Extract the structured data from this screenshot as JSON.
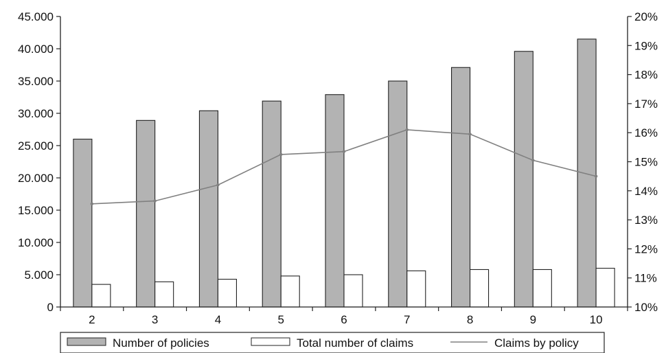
{
  "chart_data": {
    "type": "bar",
    "categories": [
      "2",
      "3",
      "4",
      "5",
      "6",
      "7",
      "8",
      "9",
      "10"
    ],
    "series": [
      {
        "name": "Number of policies",
        "kind": "bar",
        "axis": "left",
        "color": "#b3b3b3",
        "values": [
          26000,
          28900,
          30400,
          31900,
          32900,
          35000,
          37100,
          39600,
          41500
        ]
      },
      {
        "name": "Total number of claims",
        "kind": "bar",
        "axis": "left",
        "color": "#ffffff",
        "values": [
          3500,
          3900,
          4300,
          4800,
          5000,
          5600,
          5800,
          5800,
          6000
        ]
      },
      {
        "name": "Claims by policy",
        "kind": "line",
        "axis": "right",
        "color": "#808080",
        "values": [
          13.55,
          13.65,
          14.2,
          15.25,
          15.35,
          16.1,
          15.95,
          15.05,
          14.5
        ]
      }
    ],
    "y_left": {
      "range": [
        0,
        45000
      ],
      "ticks": [
        0,
        5000,
        10000,
        15000,
        20000,
        25000,
        30000,
        35000,
        40000,
        45000
      ],
      "tick_labels": [
        "0",
        "5.000",
        "10.000",
        "15.000",
        "20.000",
        "25.000",
        "30.000",
        "35.000",
        "40.000",
        "45.000"
      ]
    },
    "y_right": {
      "range": [
        10,
        20
      ],
      "ticks": [
        10,
        11,
        12,
        13,
        14,
        15,
        16,
        17,
        18,
        19,
        20
      ],
      "tick_labels": [
        "10%",
        "11%",
        "12%",
        "13%",
        "14%",
        "15%",
        "16%",
        "17%",
        "18%",
        "19%",
        "20%"
      ]
    },
    "grid": false,
    "legend_position": "bottom"
  }
}
